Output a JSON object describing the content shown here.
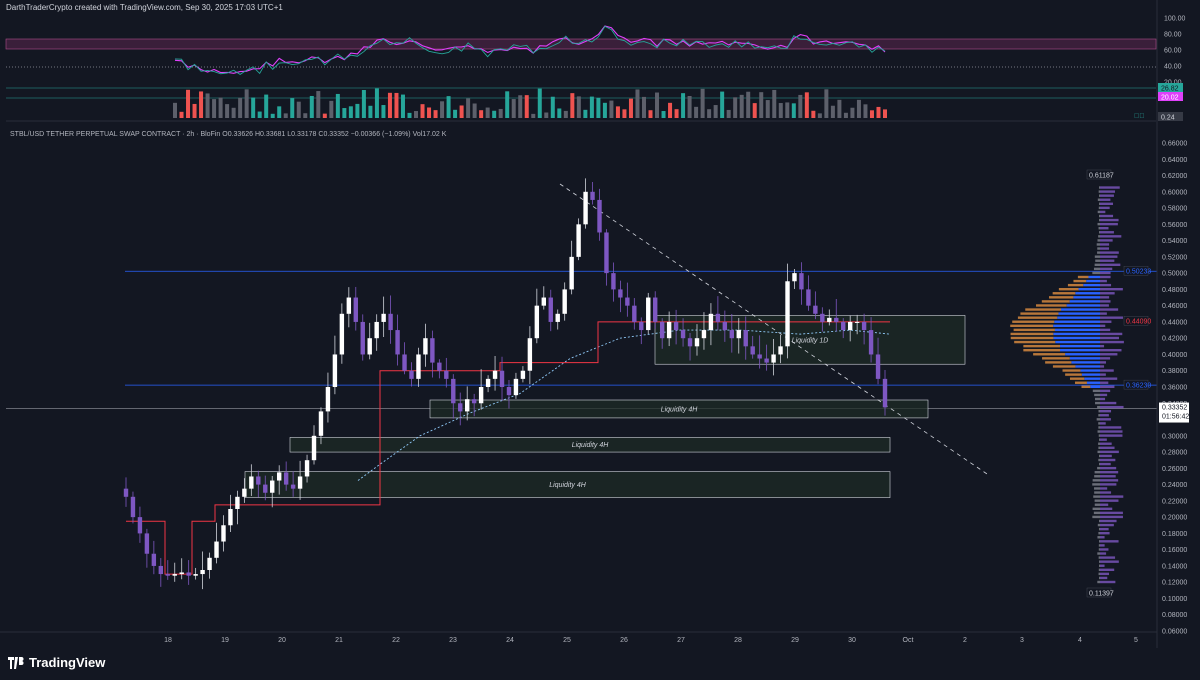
{
  "header": {
    "attribution": "DarthTraderCrypto created with TradingView.com, Sep 30, 2025 17:03 UTC+1",
    "symbol_line": "STBL/USD TETHER PERPETUAL SWAP CONTRACT · 2h · BloFin  O0.33626 H0.33681 L0.33178 C0.33352 −0.00366 (−1.09%) Vol17.02 K"
  },
  "footer": {
    "brand": "TradingView"
  },
  "colors": {
    "background": "#131722",
    "up_candle": "#b39ddb",
    "down_candle": "#7e57c2",
    "white_candle": "#ffffff",
    "bull_volume": "#26a69a",
    "bear_volume": "#ef5350",
    "support_line": "#2962ff",
    "step_line": "#f23645",
    "dotted_ma": "#90caf9",
    "zone_fill": "#1e2b26",
    "zone_border": "#d1d4dc",
    "profile_blue": "#2962ff",
    "profile_orange": "#b8773a",
    "oscillator_pink": "#e040fb",
    "oscillator_teal": "#26a69a"
  },
  "oscillator_panel": {
    "scale_labels": [
      "100.00",
      "80.00",
      "60.00",
      "40.00",
      "20.00"
    ],
    "value_tags": [
      "26.82",
      "20.02",
      "0.24"
    ],
    "indicator_icon": "eye-off-icon"
  },
  "price_tags": {
    "high_tag": "0.61187",
    "low_tag": "0.11397",
    "level_upper": "0.50233",
    "level_poc": "0.44090",
    "level_lower": "0.36230",
    "current_price": "0.33352",
    "countdown": "01:56:42"
  },
  "zones": [
    {
      "label": "Liquidity 1D"
    },
    {
      "label": "Liquidity 4H"
    },
    {
      "label": "Liquidity 4H"
    },
    {
      "label": "Liquidity 4H"
    }
  ],
  "chart_data": {
    "type": "candlestick",
    "symbol": "STBL/USD",
    "timeframe": "2h",
    "x_labels": [
      "18",
      "19",
      "20",
      "21",
      "22",
      "23",
      "24",
      "25",
      "26",
      "27",
      "28",
      "29",
      "30",
      "Oct",
      "2",
      "3",
      "4",
      "5"
    ],
    "y_labels": [
      "0.66000",
      "0.64000",
      "0.62000",
      "0.60000",
      "0.58000",
      "0.56000",
      "0.54000",
      "0.52000",
      "0.50000",
      "0.48000",
      "0.46000",
      "0.44000",
      "0.42000",
      "0.40000",
      "0.38000",
      "0.36000",
      "0.34000",
      "0.32000",
      "0.30000",
      "0.28000",
      "0.26000",
      "0.24000",
      "0.22000",
      "0.20000",
      "0.18000",
      "0.16000",
      "0.14000",
      "0.12000",
      "0.10000",
      "0.08000",
      "0.06000"
    ],
    "ylim": [
      0.06,
      0.66
    ],
    "ohlc_close_series": [
      0.225,
      0.2,
      0.18,
      0.155,
      0.14,
      0.13,
      0.128,
      0.13,
      0.132,
      0.128,
      0.13,
      0.135,
      0.15,
      0.17,
      0.19,
      0.21,
      0.225,
      0.235,
      0.25,
      0.24,
      0.23,
      0.245,
      0.255,
      0.24,
      0.235,
      0.25,
      0.27,
      0.3,
      0.33,
      0.36,
      0.4,
      0.45,
      0.47,
      0.44,
      0.4,
      0.42,
      0.44,
      0.45,
      0.43,
      0.4,
      0.38,
      0.37,
      0.4,
      0.42,
      0.39,
      0.38,
      0.37,
      0.34,
      0.33,
      0.345,
      0.34,
      0.36,
      0.37,
      0.38,
      0.36,
      0.35,
      0.37,
      0.38,
      0.42,
      0.46,
      0.47,
      0.44,
      0.45,
      0.48,
      0.52,
      0.56,
      0.6,
      0.59,
      0.55,
      0.5,
      0.48,
      0.47,
      0.46,
      0.44,
      0.43,
      0.47,
      0.44,
      0.42,
      0.44,
      0.43,
      0.42,
      0.41,
      0.42,
      0.43,
      0.45,
      0.44,
      0.43,
      0.42,
      0.43,
      0.41,
      0.4,
      0.395,
      0.39,
      0.4,
      0.41,
      0.49,
      0.5,
      0.48,
      0.46,
      0.45,
      0.44,
      0.445,
      0.44,
      0.43,
      0.44,
      0.44,
      0.43,
      0.4,
      0.37,
      0.335
    ],
    "levels": {
      "upper": 0.50233,
      "poc": 0.4409,
      "lower": 0.3623,
      "current": 0.33352,
      "high": 0.61187,
      "low": 0.11397
    },
    "grid": false
  }
}
